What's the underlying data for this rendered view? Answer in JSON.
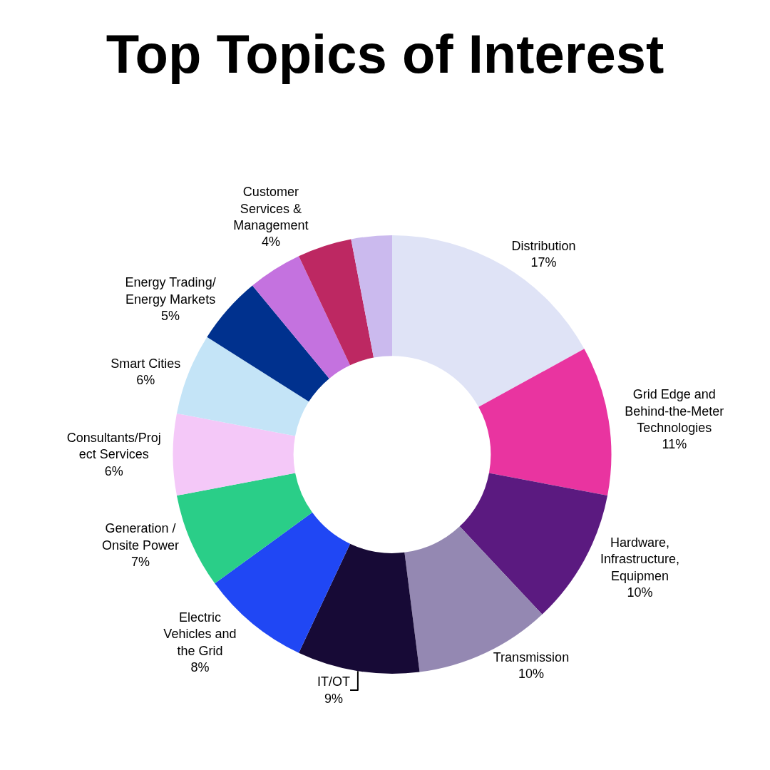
{
  "chart_data": {
    "type": "donut",
    "title": "Top Topics of Interest",
    "categories": [
      "Distribution",
      "Grid Edge and\nBehind-the-Meter\nTechnologies",
      "Hardware,\nInfrastructure,\nEquipmen",
      "Transmission",
      "IT/OT",
      "Electric\nVehicles and\nthe Grid",
      "Generation /\nOnsite Power",
      "Consultants/Proj\nect Services",
      "Smart Cities",
      "Energy Trading/\nEnergy Markets",
      null,
      "Customer\nServices &\nManagement",
      null
    ],
    "values": [
      17,
      11,
      10,
      10,
      9,
      8,
      7,
      6,
      6,
      5,
      4,
      4,
      3
    ],
    "value_labels": [
      "17%",
      "11%",
      "10%",
      "10%",
      "9%",
      "8%",
      "7%",
      "6%",
      "6%",
      "5%",
      null,
      "4%",
      null
    ],
    "colors": [
      "#dfe3f6",
      "#e934a0",
      "#5b1a80",
      "#9488b2",
      "#170a36",
      "#2047f4",
      "#2ace88",
      "#f4c8f8",
      "#c4e4f7",
      "#00318e",
      "#c472df",
      "#bd2862",
      "#cbbaee"
    ],
    "legend": false
  }
}
